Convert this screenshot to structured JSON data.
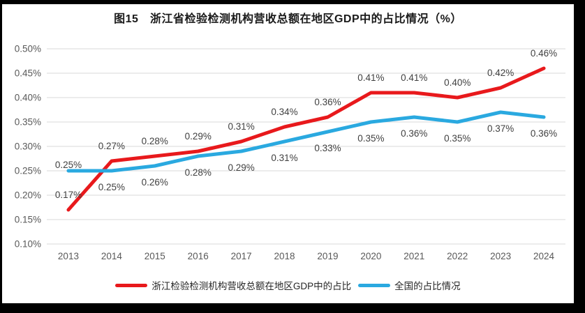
{
  "chart_data": {
    "type": "line",
    "title": "图15　浙江省检验检测机构营收总额在地区GDP中的占比情况（%）",
    "x": [
      "2013",
      "2014",
      "2015",
      "2016",
      "2017",
      "2018",
      "2019",
      "2020",
      "2021",
      "2022",
      "2023",
      "2024"
    ],
    "series": [
      {
        "name": "浙江检验检测机构营收总额在地区GDP中的占比",
        "color": "#e8191c",
        "values": [
          0.17,
          0.27,
          0.28,
          0.29,
          0.31,
          0.34,
          0.36,
          0.41,
          0.41,
          0.4,
          0.42,
          0.46
        ],
        "labels": [
          "0.17%",
          "0.27%",
          "0.28%",
          "0.29%",
          "0.31%",
          "0.34%",
          "0.36%",
          "0.41%",
          "0.41%",
          "0.40%",
          "0.42%",
          "0.46%"
        ]
      },
      {
        "name": "全国的占比情况",
        "color": "#2aa9e0",
        "values": [
          0.25,
          0.25,
          0.26,
          0.28,
          0.29,
          0.31,
          0.33,
          0.35,
          0.36,
          0.35,
          0.37,
          0.36
        ],
        "labels": [
          "0.25%",
          "0.25%",
          "0.26%",
          "0.28%",
          "0.29%",
          "0.31%",
          "0.33%",
          "0.35%",
          "0.36%",
          "0.35%",
          "0.37%",
          "0.36%"
        ]
      }
    ],
    "y_axis": {
      "min": 0.1,
      "max": 0.5,
      "step": 0.05,
      "tick_labels": [
        "0.10%",
        "0.15%",
        "0.20%",
        "0.25%",
        "0.30%",
        "0.35%",
        "0.40%",
        "0.45%",
        "0.50%"
      ]
    },
    "xlabel": "",
    "ylabel": "",
    "grid": "horizontal",
    "legend_position": "bottom",
    "colors": {
      "grid": "#d9d9d9",
      "axis_text": "#595959",
      "data_label": "#404040"
    }
  }
}
